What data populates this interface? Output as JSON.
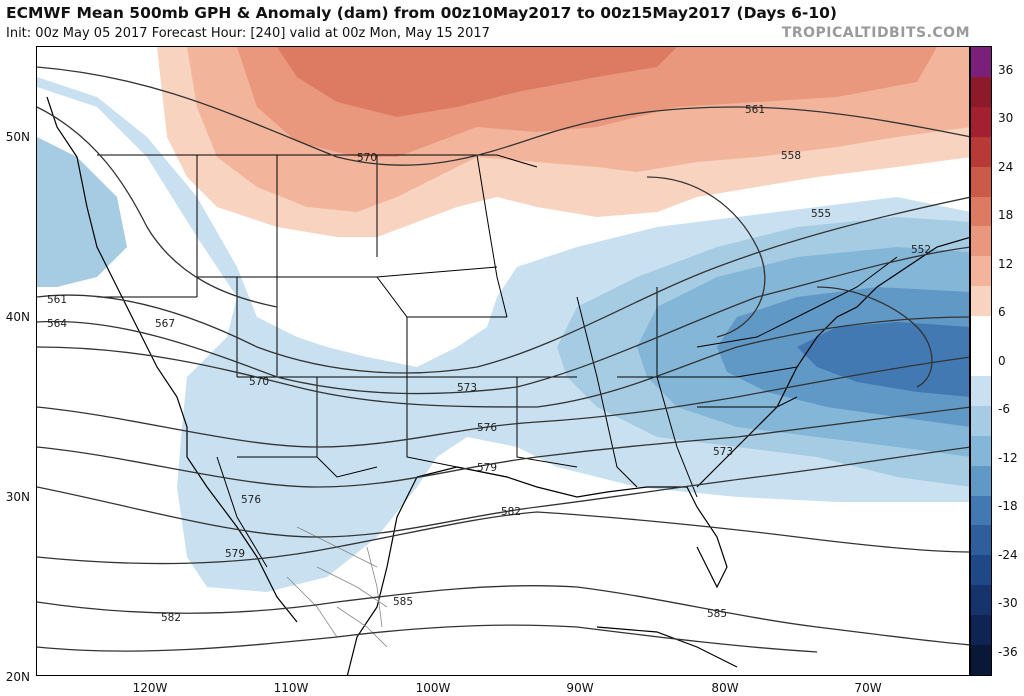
{
  "header": {
    "title": "ECMWF Mean 500mb GPH & Anomaly (dam) from 00z10May2017 to 00z15May2017 (Days 6-10)",
    "subtitle": "Init: 00z May 05 2017   Forecast Hour: [240]   valid at 00z Mon, May 15 2017",
    "watermark": "TROPICALTIDBITS.COM"
  },
  "map": {
    "lat_labels": [
      "50N",
      "40N",
      "30N",
      "20N"
    ],
    "lon_labels": [
      "120W",
      "110W",
      "100W",
      "90W",
      "80W",
      "70W"
    ],
    "contour_labels": [
      "570",
      "561",
      "558",
      "555",
      "552",
      "561",
      "564",
      "567",
      "570",
      "573",
      "576",
      "579",
      "582",
      "573",
      "576",
      "579",
      "582",
      "585",
      "585"
    ]
  },
  "colorbar": {
    "labels": [
      "36",
      "30",
      "24",
      "18",
      "12",
      "6",
      "0",
      "-6",
      "-12",
      "-18",
      "-24",
      "-30",
      "-36"
    ],
    "colors": [
      "#7a1f7a",
      "#8c1a2a",
      "#a32030",
      "#b83a36",
      "#cc5a48",
      "#dd7a62",
      "#e9987e",
      "#f2b59c",
      "#f8d3c0",
      "#ffffff",
      "#ffffff",
      "#c8e0ef",
      "#a6cce4",
      "#84b6d8",
      "#6199c6",
      "#4379b2",
      "#2e5e9c",
      "#1f4886",
      "#16346c",
      "#0e2452",
      "#0a1838"
    ]
  }
}
